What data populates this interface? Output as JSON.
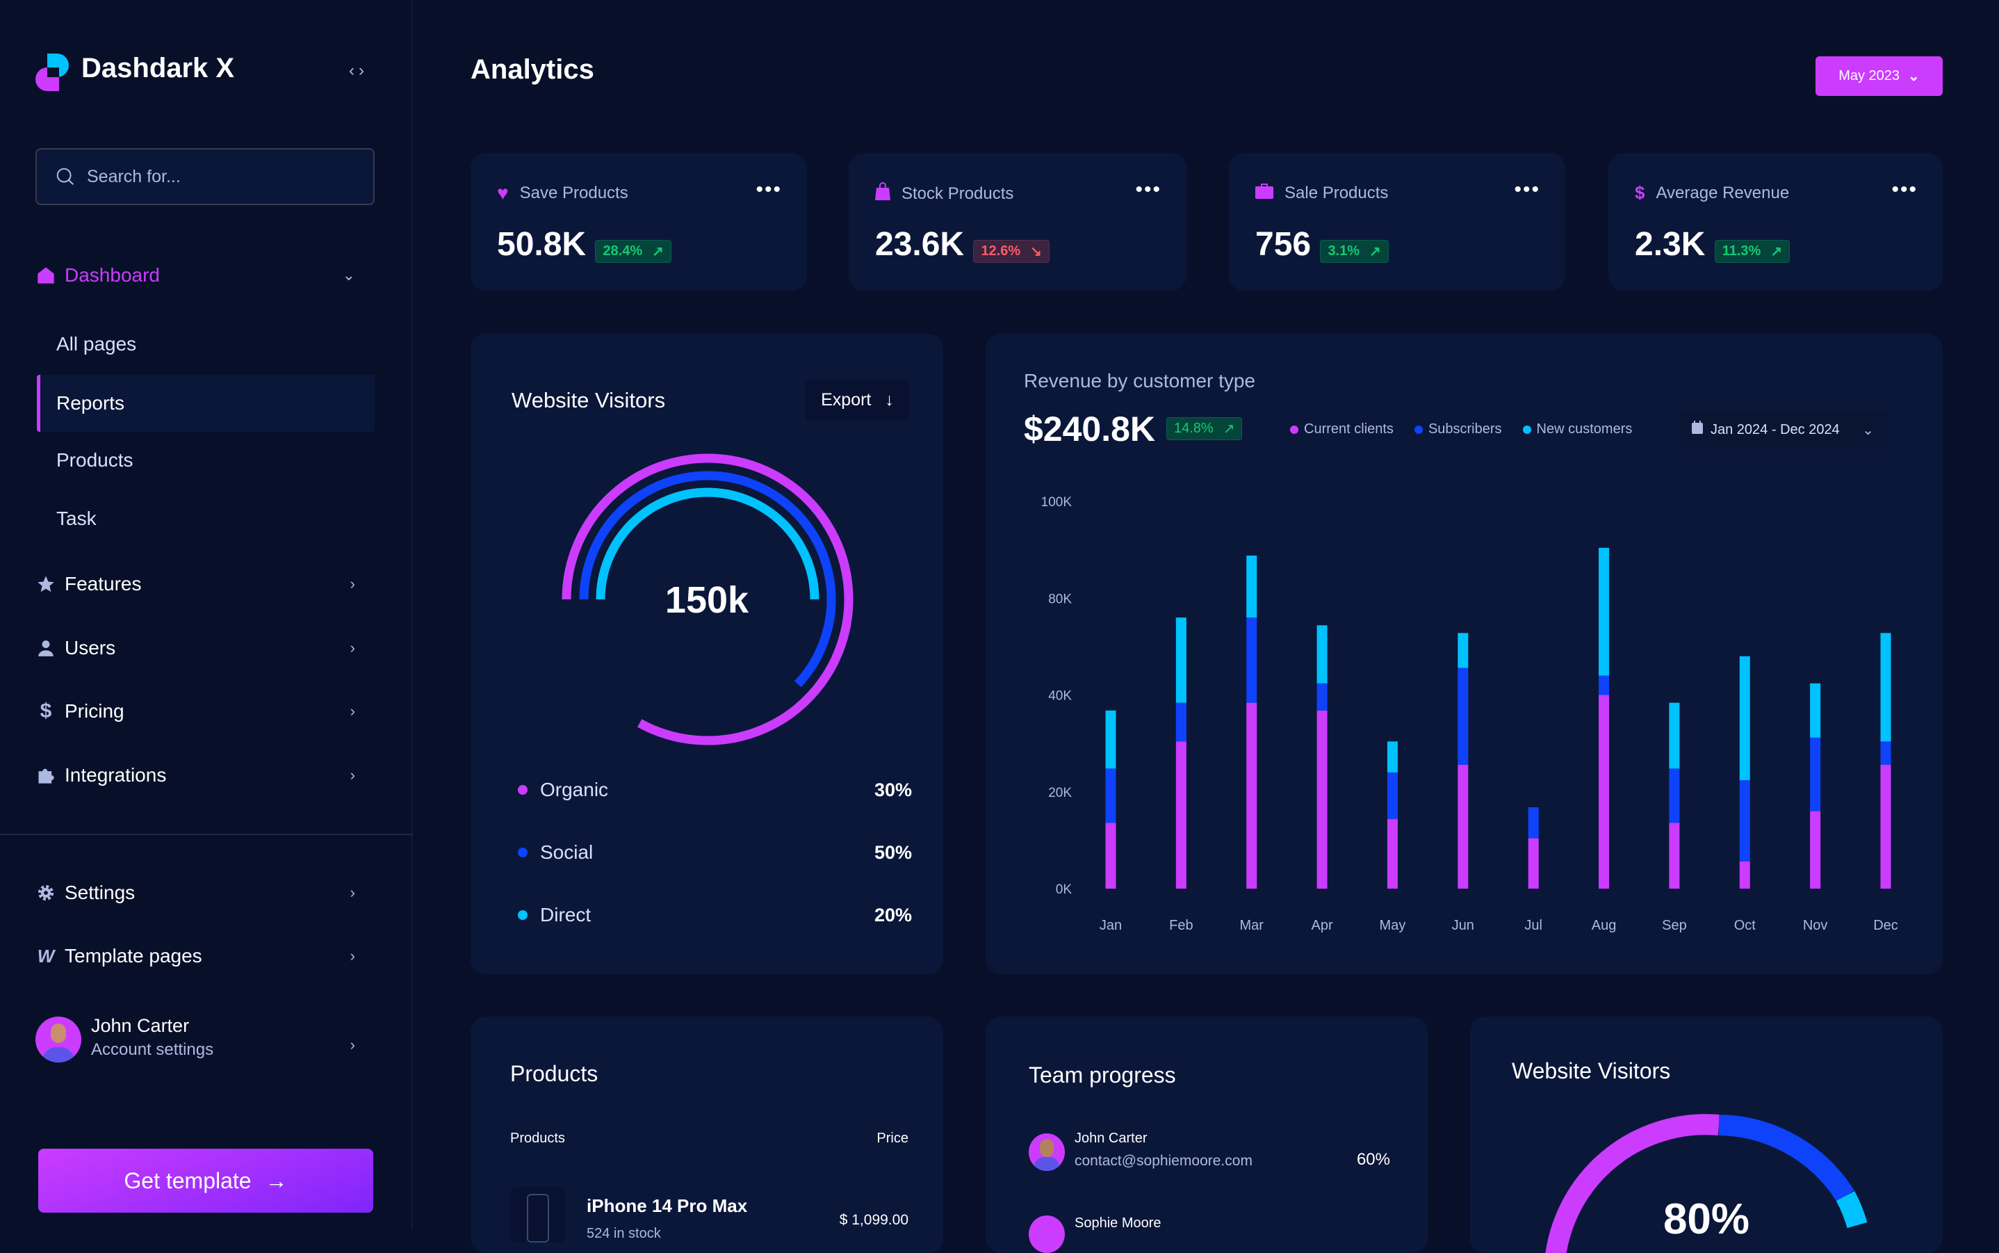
{
  "colors": {
    "accent": "#cb3cff",
    "blue": "#0e43fb",
    "cyan": "#00c2ff",
    "up": "#14ca74",
    "down": "#ff5a65"
  },
  "sidebar": {
    "brand": "Dashdark X",
    "search_placeholder": "Search for...",
    "dashboard": "Dashboard",
    "sub_items": [
      "All pages",
      "Reports",
      "Products",
      "Task"
    ],
    "active_sub": "Reports",
    "items": [
      {
        "label": "Features",
        "icon": "star-icon"
      },
      {
        "label": "Users",
        "icon": "user-icon"
      },
      {
        "label": "Pricing",
        "icon": "dollar-icon"
      },
      {
        "label": "Integrations",
        "icon": "puzzle-icon"
      }
    ],
    "bottom_items": [
      {
        "label": "Settings",
        "icon": "gear-icon"
      },
      {
        "label": "Template pages",
        "icon": "webflow-icon"
      }
    ],
    "user": {
      "name": "John Carter",
      "subtitle": "Account settings"
    },
    "cta": "Get template"
  },
  "header": {
    "title": "Analytics",
    "date_button": "May 2023"
  },
  "stats": [
    {
      "label": "Save Products",
      "value": "50.8K",
      "change": "28.4%",
      "trend": "up",
      "icon": "heart-icon"
    },
    {
      "label": "Stock Products",
      "value": "23.6K",
      "change": "12.6%",
      "trend": "down",
      "icon": "bag-icon"
    },
    {
      "label": "Sale Products",
      "value": "756",
      "change": "3.1%",
      "trend": "up",
      "icon": "briefcase-icon"
    },
    {
      "label": "Average Revenue",
      "value": "2.3K",
      "change": "11.3%",
      "trend": "up",
      "icon": "dollar-icon"
    }
  ],
  "visitors": {
    "title": "Website Visitors",
    "export": "Export",
    "total": "150k",
    "rings": [
      {
        "label": "Organic",
        "pct": "30%",
        "color": "#cb3cff",
        "arc_fill": 0.83
      },
      {
        "label": "Social",
        "pct": "50%",
        "color": "#0e43fb",
        "arc_fill": 0.62
      },
      {
        "label": "Direct",
        "pct": "20%",
        "color": "#00c2ff",
        "arc_fill": 0.5
      }
    ]
  },
  "revenue": {
    "title": "Revenue by customer type",
    "total": "$240.8K",
    "change": "14.8%",
    "date_range": "Jan 2024 - Dec 2024"
  },
  "chart_data": {
    "type": "bar",
    "stacked": true,
    "categories": [
      "Jan",
      "Feb",
      "Mar",
      "Apr",
      "May",
      "Jun",
      "Jul",
      "Aug",
      "Sep",
      "Oct",
      "Nov",
      "Dec"
    ],
    "y_ticks": [
      "0K",
      "20K",
      "40K",
      "80K",
      "100K"
    ],
    "ylim": [
      0,
      100
    ],
    "grid": false,
    "legend": "top",
    "series": [
      {
        "name": "Current clients",
        "color": "#cb3cff",
        "values": [
          17,
          38,
          48,
          46,
          18,
          32,
          13,
          50,
          17,
          7,
          20,
          32
        ]
      },
      {
        "name": "Subscribers",
        "color": "#0e43fb",
        "values": [
          14,
          10,
          22,
          7,
          12,
          25,
          8,
          5,
          14,
          21,
          19,
          6
        ]
      },
      {
        "name": "New customers",
        "color": "#00c2ff",
        "values": [
          15,
          22,
          16,
          15,
          8,
          9,
          0,
          33,
          17,
          32,
          14,
          28
        ]
      }
    ]
  },
  "products": {
    "title": "Products",
    "col_product": "Products",
    "col_price": "Price",
    "rows": [
      {
        "name": "iPhone 14 Pro Max",
        "stock": "524 in stock",
        "price": "$ 1,099.00"
      }
    ]
  },
  "team": {
    "title": "Team progress",
    "members": [
      {
        "name": "John Carter",
        "email": "contact@sophiemoore.com",
        "progress": "60%"
      },
      {
        "name": "Sophie Moore"
      }
    ]
  },
  "visitors2": {
    "title": "Website Visitors",
    "value": "80%"
  }
}
